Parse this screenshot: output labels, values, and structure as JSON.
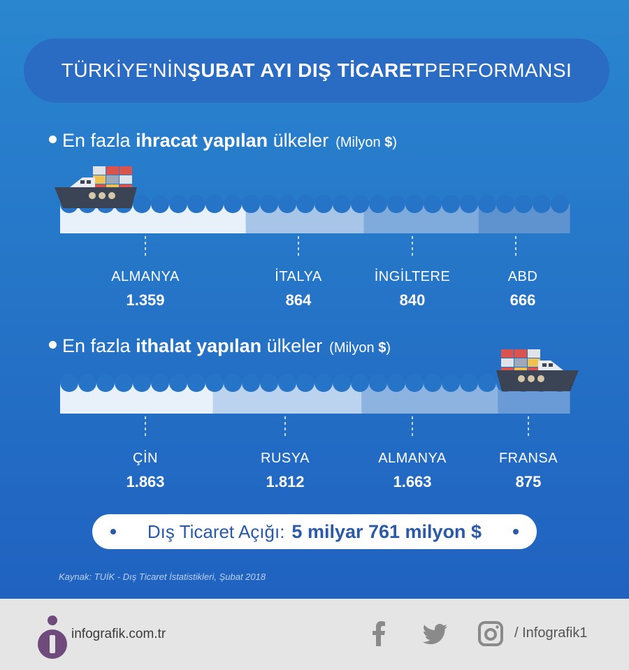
{
  "title": {
    "part1": "TÜRKİYE'NİN ",
    "part2_bold": "ŞUBAT AYI DIŞ TİCARET",
    "part3": " PERFORMANSI"
  },
  "exports": {
    "heading_prefix": "En fazla ",
    "heading_bold": "ihracat yapılan",
    "heading_suffix": " ülkeler",
    "unit_prefix": "(Milyon ",
    "unit_symbol": "$",
    "unit_suffix": ")"
  },
  "imports": {
    "heading_prefix": "En fazla ",
    "heading_bold": "ithalat yapılan",
    "heading_suffix": " ülkeler",
    "unit_prefix": "(Milyon ",
    "unit_symbol": "$",
    "unit_suffix": ")"
  },
  "chart_data": [
    {
      "type": "bar",
      "orientation": "horizontal-stacked",
      "categories": [
        "ALMANYA",
        "İTALYA",
        "İNGİLTERE",
        "ABD"
      ],
      "values": [
        1359,
        864,
        840,
        666
      ],
      "value_labels": [
        "1.359",
        "864",
        "840",
        "666"
      ],
      "segment_colors": [
        "#e8f0f9",
        "#a6c5e7",
        "#7eaadc",
        "#5f93d0"
      ]
    },
    {
      "type": "bar",
      "orientation": "horizontal-stacked",
      "categories": [
        "ÇİN",
        "RUSYA",
        "ALMANYA",
        "FRANSA"
      ],
      "values": [
        1863,
        1812,
        1663,
        875
      ],
      "value_labels": [
        "1.863",
        "1.812",
        "1.663",
        "875"
      ],
      "segment_colors": [
        "#e8f0f9",
        "#bcd3ef",
        "#8db4e1",
        "#6b9bd6"
      ]
    }
  ],
  "deficit": {
    "label": "Dış Ticaret Açığı:",
    "value": "5 milyar 761 milyon $"
  },
  "source": "Kaynak: TUİK - Dış Ticaret İstatistikleri, Şubat 2018",
  "footer": {
    "brand": "infografik.com.tr",
    "social_handle": "/ Infografik1",
    "icons": [
      "facebook-icon",
      "twitter-icon",
      "instagram-icon"
    ]
  },
  "colors": {
    "background_top": "#2a86cf",
    "background_bottom": "#2062c0",
    "title_pill": "#2a6bc4",
    "accent_text": "#2b5aa8",
    "ship_hull": "#3b4454",
    "footer_bg": "#e5e5e6",
    "brand_purple": "#6f4b7c"
  }
}
